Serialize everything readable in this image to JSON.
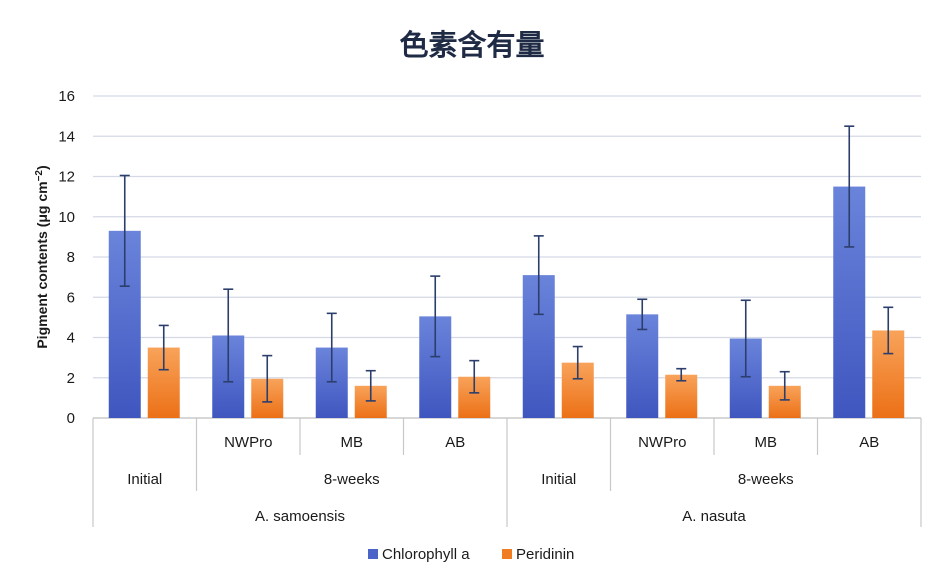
{
  "chart_data": {
    "type": "bar",
    "title": "色素含有量",
    "ylabel": "Pigment contents (μg cm",
    "ylabel_sup": "−2",
    "ylabel_end": ")",
    "ylim": [
      0,
      16
    ],
    "yticks": [
      0,
      2,
      4,
      6,
      8,
      10,
      12,
      14,
      16
    ],
    "grid": true,
    "legend_position": "bottom",
    "categories": [
      "Initial",
      "NWPro",
      "MB",
      "AB",
      "Initial",
      "NWPro",
      "MB",
      "AB"
    ],
    "category_levels": {
      "level1": [
        "",
        "NWPro",
        "MB",
        "AB",
        "",
        "NWPro",
        "MB",
        "AB"
      ],
      "level2": [
        {
          "label": "Initial",
          "span": 1
        },
        {
          "label": "8-weeks",
          "span": 3
        },
        {
          "label": "Initial",
          "span": 1
        },
        {
          "label": "8-weeks",
          "span": 3
        }
      ],
      "level3": [
        {
          "label": "A. samoensis",
          "span": 4
        },
        {
          "label": "A. nasuta",
          "span": 4
        }
      ]
    },
    "series": [
      {
        "name": "Chlorophyll a",
        "color": "#4a65c7",
        "values": [
          9.3,
          4.1,
          3.5,
          5.05,
          7.1,
          5.15,
          3.95,
          11.5
        ],
        "error": [
          2.75,
          2.3,
          1.7,
          2.0,
          1.95,
          0.75,
          1.9,
          3.0
        ]
      },
      {
        "name": "Peridinin",
        "color": "#f07d22",
        "values": [
          3.5,
          1.95,
          1.6,
          2.05,
          2.75,
          2.15,
          1.6,
          4.35
        ],
        "error": [
          1.1,
          1.15,
          0.75,
          0.8,
          0.8,
          0.3,
          0.7,
          1.15
        ]
      }
    ]
  }
}
